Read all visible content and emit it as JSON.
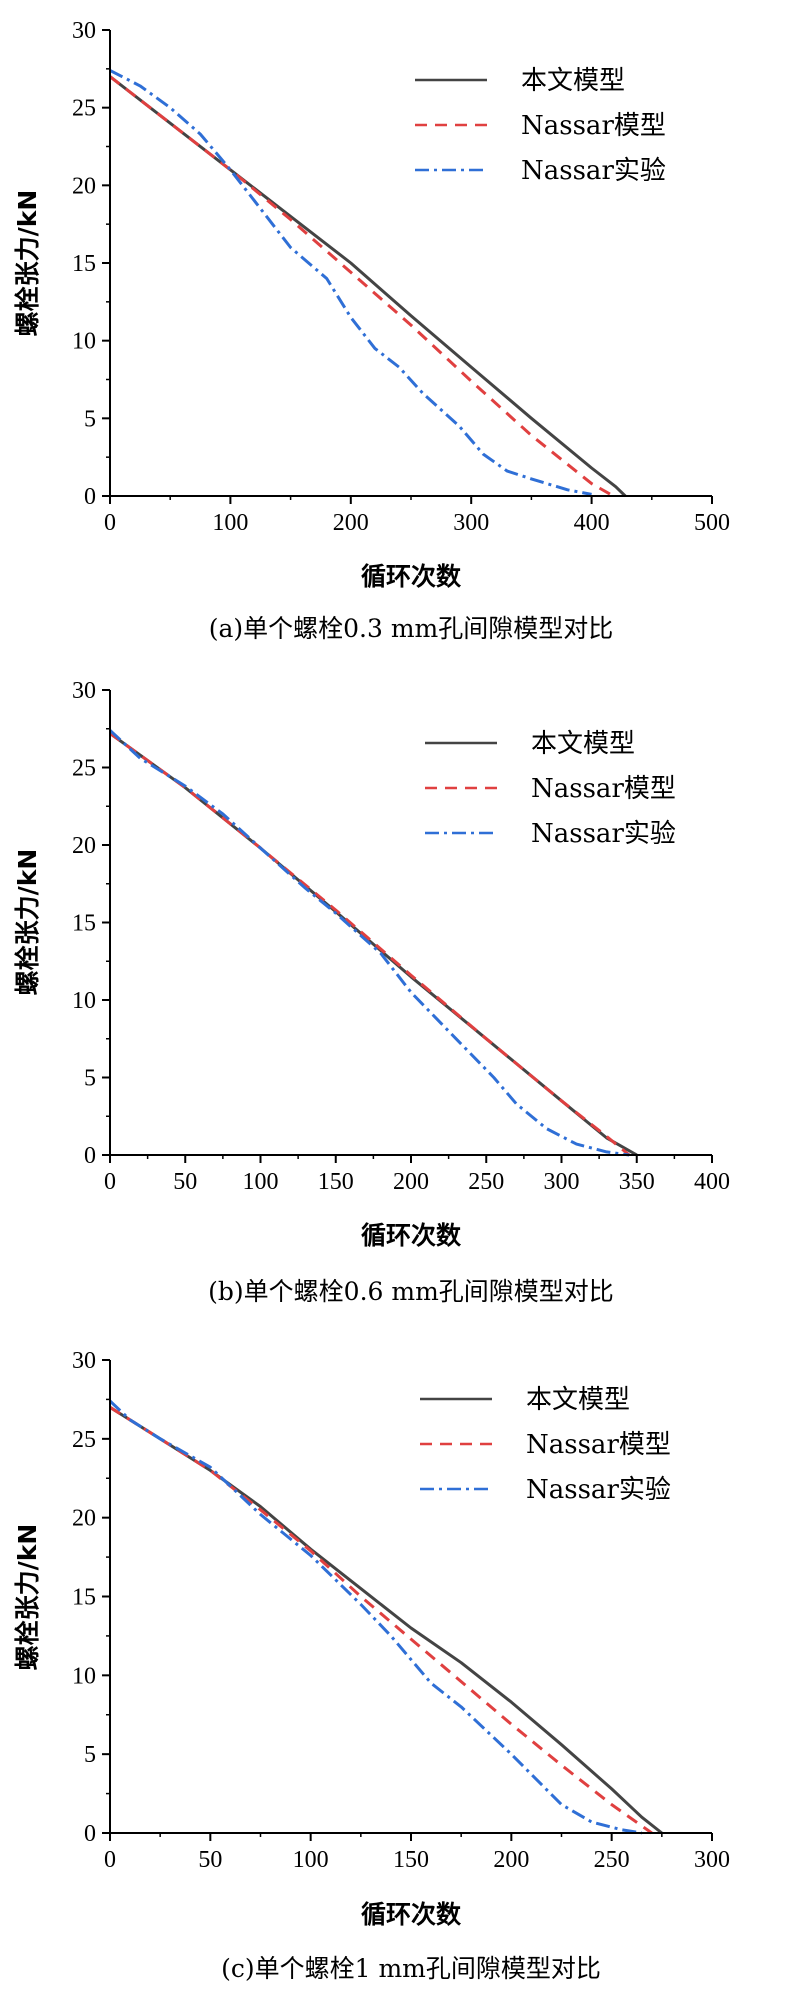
{
  "chart_data": [
    {
      "type": "line",
      "caption": "(a)单个螺栓0.3 mm孔间隙模型对比",
      "xlabel": "循环次数",
      "ylabel": "螺栓张力/kN",
      "xlim": [
        0,
        500
      ],
      "ylim": [
        0,
        30
      ],
      "xticks": [
        0,
        100,
        200,
        300,
        400,
        500
      ],
      "yticks": [
        0,
        5,
        10,
        15,
        20,
        25,
        30
      ],
      "legend_position": "top-right",
      "colors": {
        "model": "#444444",
        "nassar_model": "#e04040",
        "nassar_exp": "#2f6fd6"
      },
      "series": [
        {
          "name": "本文模型",
          "style": "solid",
          "x": [
            0,
            50,
            100,
            150,
            200,
            250,
            300,
            350,
            400,
            420,
            428
          ],
          "y": [
            27.0,
            24.0,
            21.0,
            18.0,
            15.0,
            11.6,
            8.3,
            5.0,
            1.8,
            0.6,
            0.0
          ]
        },
        {
          "name": "Nassar模型",
          "style": "dash",
          "x": [
            0,
            50,
            100,
            150,
            200,
            250,
            300,
            350,
            400,
            418
          ],
          "y": [
            27.0,
            24.0,
            21.0,
            17.8,
            14.4,
            11.0,
            7.4,
            3.9,
            0.8,
            0.0
          ]
        },
        {
          "name": "Nassar实验",
          "style": "dashdot",
          "x": [
            0,
            25,
            50,
            75,
            100,
            150,
            180,
            200,
            220,
            240,
            260,
            290,
            310,
            330,
            350,
            380,
            400
          ],
          "y": [
            27.4,
            26.4,
            25.0,
            23.3,
            21.0,
            16.0,
            14.0,
            11.5,
            9.5,
            8.3,
            6.6,
            4.5,
            2.7,
            1.6,
            1.1,
            0.4,
            0.1
          ]
        }
      ]
    },
    {
      "type": "line",
      "caption": "(b)单个螺栓0.6 mm孔间隙模型对比",
      "xlabel": "循环次数",
      "ylabel": "螺栓张力/kN",
      "xlim": [
        0,
        400
      ],
      "ylim": [
        0,
        30
      ],
      "xticks": [
        0,
        50,
        100,
        150,
        200,
        250,
        300,
        350,
        400
      ],
      "yticks": [
        0,
        5,
        10,
        15,
        20,
        25,
        30
      ],
      "legend_position": "top-right",
      "colors": {
        "model": "#444444",
        "nassar_model": "#e04040",
        "nassar_exp": "#2f6fd6"
      },
      "series": [
        {
          "name": "本文模型",
          "style": "solid",
          "x": [
            0,
            50,
            100,
            150,
            200,
            250,
            300,
            330,
            350
          ],
          "y": [
            27.2,
            23.7,
            19.8,
            15.7,
            11.5,
            7.5,
            3.5,
            1.1,
            0.0
          ]
        },
        {
          "name": "Nassar模型",
          "style": "dash",
          "x": [
            0,
            50,
            100,
            150,
            200,
            250,
            300,
            330,
            345
          ],
          "y": [
            27.2,
            23.7,
            19.8,
            15.8,
            11.6,
            7.5,
            3.5,
            1.2,
            0.0
          ]
        },
        {
          "name": "Nassar实验",
          "style": "dashdot",
          "x": [
            0,
            20,
            50,
            75,
            100,
            130,
            150,
            180,
            200,
            230,
            255,
            270,
            290,
            310,
            330,
            345
          ],
          "y": [
            27.4,
            25.6,
            23.8,
            22.0,
            19.8,
            17.2,
            15.6,
            13.0,
            10.5,
            7.5,
            5.0,
            3.3,
            1.7,
            0.7,
            0.2,
            0.0
          ]
        }
      ]
    },
    {
      "type": "line",
      "caption": "(c)单个螺栓1 mm孔间隙模型对比",
      "xlabel": "循环次数",
      "ylabel": "螺栓张力/kN",
      "xlim": [
        0,
        300
      ],
      "ylim": [
        0,
        30
      ],
      "xticks": [
        0,
        50,
        100,
        150,
        200,
        250,
        300
      ],
      "yticks": [
        0,
        5,
        10,
        15,
        20,
        25,
        30
      ],
      "legend_position": "top-right",
      "colors": {
        "model": "#444444",
        "nassar_model": "#e04040",
        "nassar_exp": "#2f6fd6"
      },
      "series": [
        {
          "name": "本文模型",
          "style": "solid",
          "x": [
            0,
            25,
            50,
            75,
            100,
            125,
            150,
            175,
            200,
            225,
            250,
            265,
            275
          ],
          "y": [
            27.0,
            25.0,
            23.0,
            20.7,
            18.0,
            15.5,
            13.0,
            10.8,
            8.3,
            5.6,
            2.8,
            1.0,
            0.0
          ]
        },
        {
          "name": "Nassar模型",
          "style": "dash",
          "x": [
            0,
            25,
            50,
            75,
            100,
            125,
            150,
            175,
            200,
            225,
            250,
            270
          ],
          "y": [
            27.0,
            25.0,
            23.0,
            20.5,
            17.9,
            15.0,
            12.3,
            9.6,
            6.9,
            4.3,
            1.8,
            0.0
          ]
        },
        {
          "name": "Nassar实验",
          "style": "dashdot",
          "x": [
            0,
            10,
            25,
            50,
            60,
            75,
            100,
            125,
            140,
            160,
            175,
            200,
            225,
            240,
            255,
            265
          ],
          "y": [
            27.4,
            26.2,
            25.0,
            23.2,
            22.0,
            20.2,
            17.6,
            14.5,
            12.5,
            9.5,
            8.0,
            5.0,
            1.8,
            0.7,
            0.2,
            0.0
          ]
        }
      ]
    }
  ]
}
